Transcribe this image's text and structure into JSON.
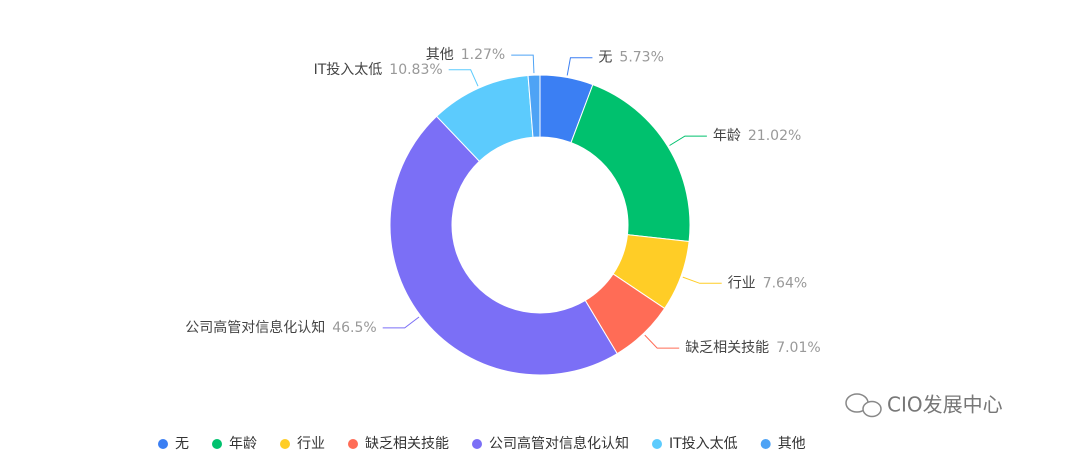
{
  "chart_data": {
    "type": "donut",
    "categories": [
      "无",
      "年龄",
      "行业",
      "缺乏相关技能",
      "公司高管对信息化认知",
      "IT投入太低",
      "其他"
    ],
    "values": [
      5.73,
      21.02,
      7.64,
      7.01,
      46.5,
      10.83,
      1.27
    ],
    "value_labels": [
      "5.73%",
      "21.02%",
      "7.64%",
      "7.01%",
      "46.5%",
      "10.83%",
      "1.27%"
    ],
    "colors": [
      "#3b7ff3",
      "#00c16e",
      "#ffcd26",
      "#ff6c56",
      "#7b6ff6",
      "#5ccbfd",
      "#4ea3f5"
    ],
    "legend": "bottom"
  },
  "watermark": "CIO发展中心"
}
